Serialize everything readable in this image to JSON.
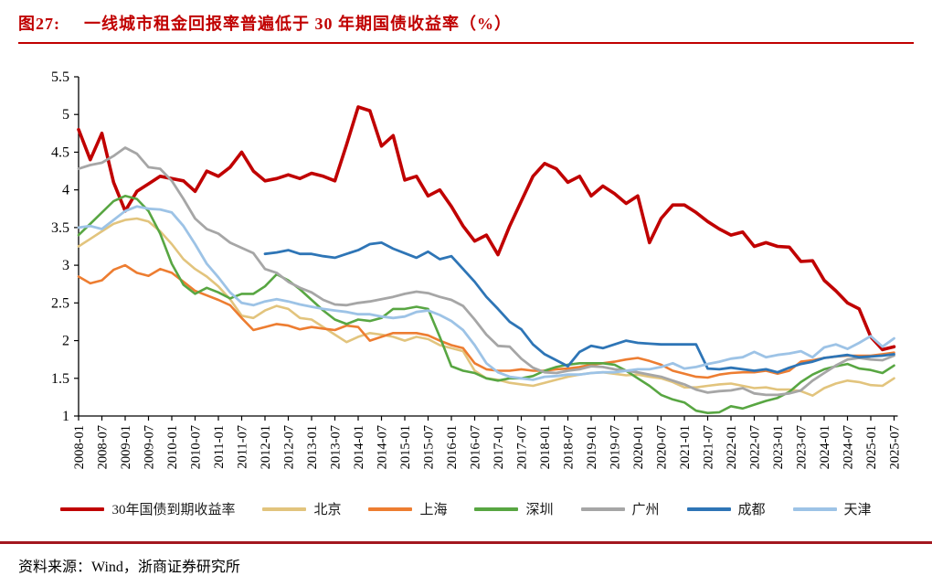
{
  "header": {
    "figure_label": "图27:",
    "title": "一线城市租金回报率普遍低于 30 年期国债收益率（%）"
  },
  "source": {
    "text": "资料来源：Wind，浙商证券研究所"
  },
  "colors": {
    "title_red": "#C00000",
    "top_rule": "#C00000",
    "bottom_rule": "#A3171F",
    "axis": "#000000",
    "text": "#1a1a1a"
  },
  "chart_data": {
    "type": "line",
    "title": "一线城市租金回报率普遍低于 30 年期国债收益率（%）",
    "xlabel": "",
    "ylabel": "",
    "ylim": [
      1,
      5.5
    ],
    "y_ticks": [
      1,
      1.5,
      2,
      2.5,
      3,
      3.5,
      4,
      4.5,
      5,
      5.5
    ],
    "grid": false,
    "legend_position": "bottom",
    "x_tick_labels": [
      "2008-01",
      "2008-07",
      "2009-01",
      "2009-07",
      "2010-01",
      "2010-07",
      "2011-01",
      "2011-07",
      "2012-01",
      "2012-07",
      "2013-01",
      "2013-07",
      "2014-01",
      "2014-07",
      "2015-01",
      "2015-07",
      "2016-01",
      "2016-07",
      "2017-01",
      "2017-07",
      "2018-01",
      "2018-07",
      "2019-01",
      "2019-07",
      "2020-01",
      "2020-07",
      "2021-01",
      "2021-07",
      "2022-01",
      "2022-07",
      "2023-01",
      "2023-07",
      "2024-01",
      "2024-07",
      "2025-01",
      "2025-07"
    ],
    "x": [
      "2008-01",
      "2008-04",
      "2008-07",
      "2008-10",
      "2009-01",
      "2009-04",
      "2009-07",
      "2009-10",
      "2010-01",
      "2010-04",
      "2010-07",
      "2010-10",
      "2011-01",
      "2011-04",
      "2011-07",
      "2011-10",
      "2012-01",
      "2012-04",
      "2012-07",
      "2012-10",
      "2013-01",
      "2013-04",
      "2013-07",
      "2013-10",
      "2014-01",
      "2014-04",
      "2014-07",
      "2014-10",
      "2015-01",
      "2015-04",
      "2015-07",
      "2015-10",
      "2016-01",
      "2016-04",
      "2016-07",
      "2016-10",
      "2017-01",
      "2017-04",
      "2017-07",
      "2017-10",
      "2018-01",
      "2018-04",
      "2018-07",
      "2018-10",
      "2019-01",
      "2019-04",
      "2019-07",
      "2019-10",
      "2020-01",
      "2020-04",
      "2020-07",
      "2020-10",
      "2021-01",
      "2021-04",
      "2021-07",
      "2021-10",
      "2022-01",
      "2022-04",
      "2022-07",
      "2022-10",
      "2023-01",
      "2023-04",
      "2023-07",
      "2023-10",
      "2024-01",
      "2024-04",
      "2024-07",
      "2024-10",
      "2025-01",
      "2025-04",
      "2025-07"
    ],
    "series": [
      {
        "name": "30年国债到期收益率",
        "color": "#C00000",
        "width": 3.6,
        "values": [
          4.8,
          4.4,
          4.75,
          4.1,
          3.72,
          3.98,
          4.08,
          4.18,
          4.15,
          4.12,
          3.98,
          4.25,
          4.18,
          4.3,
          4.5,
          4.25,
          4.12,
          4.15,
          4.2,
          4.15,
          4.22,
          4.18,
          4.12,
          4.6,
          5.1,
          5.05,
          4.58,
          4.72,
          4.13,
          4.18,
          3.92,
          4.0,
          3.78,
          3.52,
          3.32,
          3.4,
          3.14,
          3.52,
          3.85,
          4.18,
          4.35,
          4.28,
          4.1,
          4.18,
          3.92,
          4.05,
          3.95,
          3.82,
          3.92,
          3.3,
          3.62,
          3.8,
          3.8,
          3.7,
          3.58,
          3.48,
          3.4,
          3.44,
          3.25,
          3.3,
          3.25,
          3.24,
          3.05,
          3.06,
          2.8,
          2.66,
          2.5,
          2.42,
          2.05,
          1.88,
          1.92
        ]
      },
      {
        "name": "北京",
        "color": "#E2C47D",
        "width": 2.6,
        "values": [
          3.25,
          3.35,
          3.45,
          3.55,
          3.6,
          3.62,
          3.58,
          3.45,
          3.28,
          3.08,
          2.95,
          2.85,
          2.72,
          2.55,
          2.33,
          2.3,
          2.4,
          2.46,
          2.42,
          2.3,
          2.28,
          2.18,
          2.08,
          1.98,
          2.05,
          2.1,
          2.08,
          2.05,
          2.0,
          2.05,
          2.02,
          1.94,
          1.9,
          1.86,
          1.6,
          1.5,
          1.48,
          1.44,
          1.42,
          1.4,
          1.44,
          1.48,
          1.52,
          1.55,
          1.57,
          1.58,
          1.56,
          1.54,
          1.55,
          1.52,
          1.5,
          1.45,
          1.38,
          1.38,
          1.4,
          1.42,
          1.43,
          1.4,
          1.37,
          1.38,
          1.35,
          1.35,
          1.33,
          1.27,
          1.37,
          1.43,
          1.47,
          1.45,
          1.41,
          1.4,
          1.5
        ]
      },
      {
        "name": "上海",
        "color": "#ED7D31",
        "width": 2.6,
        "values": [
          2.85,
          2.76,
          2.8,
          2.94,
          3.0,
          2.9,
          2.86,
          2.95,
          2.9,
          2.78,
          2.66,
          2.6,
          2.54,
          2.47,
          2.3,
          2.14,
          2.18,
          2.22,
          2.2,
          2.15,
          2.18,
          2.16,
          2.14,
          2.2,
          2.18,
          2.0,
          2.05,
          2.1,
          2.1,
          2.1,
          2.07,
          2.0,
          1.94,
          1.9,
          1.7,
          1.62,
          1.6,
          1.6,
          1.62,
          1.6,
          1.6,
          1.62,
          1.63,
          1.65,
          1.68,
          1.7,
          1.72,
          1.75,
          1.77,
          1.73,
          1.68,
          1.6,
          1.56,
          1.52,
          1.51,
          1.55,
          1.57,
          1.58,
          1.58,
          1.6,
          1.56,
          1.6,
          1.72,
          1.74,
          1.77,
          1.79,
          1.8,
          1.8,
          1.8,
          1.82,
          1.84
        ]
      },
      {
        "name": "深圳",
        "color": "#58A642",
        "width": 2.6,
        "values": [
          3.4,
          3.55,
          3.7,
          3.85,
          3.92,
          3.88,
          3.72,
          3.42,
          3.02,
          2.74,
          2.62,
          2.7,
          2.64,
          2.56,
          2.62,
          2.62,
          2.72,
          2.88,
          2.8,
          2.68,
          2.54,
          2.4,
          2.28,
          2.22,
          2.28,
          2.26,
          2.3,
          2.42,
          2.42,
          2.45,
          2.42,
          2.05,
          1.66,
          1.6,
          1.57,
          1.5,
          1.47,
          1.5,
          1.5,
          1.53,
          1.6,
          1.65,
          1.68,
          1.7,
          1.7,
          1.7,
          1.68,
          1.6,
          1.5,
          1.4,
          1.28,
          1.22,
          1.18,
          1.07,
          1.04,
          1.05,
          1.13,
          1.1,
          1.15,
          1.2,
          1.24,
          1.32,
          1.45,
          1.55,
          1.62,
          1.66,
          1.69,
          1.63,
          1.61,
          1.57,
          1.67
        ]
      },
      {
        "name": "广州",
        "color": "#A6A6A6",
        "width": 2.8,
        "values": [
          4.28,
          4.33,
          4.36,
          4.45,
          4.56,
          4.48,
          4.3,
          4.28,
          4.12,
          3.88,
          3.62,
          3.48,
          3.42,
          3.3,
          3.23,
          3.16,
          2.95,
          2.9,
          2.78,
          2.7,
          2.64,
          2.54,
          2.48,
          2.47,
          2.5,
          2.52,
          2.55,
          2.58,
          2.62,
          2.65,
          2.63,
          2.58,
          2.54,
          2.46,
          2.28,
          2.08,
          1.93,
          1.92,
          1.76,
          1.64,
          1.58,
          1.57,
          1.6,
          1.62,
          1.66,
          1.65,
          1.62,
          1.6,
          1.58,
          1.55,
          1.52,
          1.47,
          1.42,
          1.35,
          1.31,
          1.33,
          1.34,
          1.37,
          1.3,
          1.28,
          1.28,
          1.3,
          1.34,
          1.47,
          1.57,
          1.67,
          1.75,
          1.77,
          1.75,
          1.74,
          1.8
        ]
      },
      {
        "name": "成都",
        "color": "#2E75B6",
        "width": 2.8,
        "values": [
          null,
          null,
          null,
          null,
          null,
          null,
          null,
          null,
          null,
          null,
          null,
          null,
          null,
          null,
          null,
          null,
          3.15,
          3.17,
          3.2,
          3.15,
          3.15,
          3.12,
          3.1,
          3.15,
          3.2,
          3.28,
          3.3,
          3.22,
          3.16,
          3.1,
          3.18,
          3.08,
          3.12,
          2.95,
          2.78,
          2.58,
          2.42,
          2.25,
          2.15,
          1.95,
          1.82,
          1.74,
          1.66,
          1.85,
          1.93,
          1.9,
          1.95,
          2.0,
          1.97,
          1.96,
          1.95,
          1.95,
          1.95,
          1.95,
          1.63,
          1.62,
          1.64,
          1.62,
          1.6,
          1.62,
          1.58,
          1.64,
          1.69,
          1.72,
          1.77,
          1.79,
          1.81,
          1.78,
          1.79,
          1.8,
          1.82
        ]
      },
      {
        "name": "天津",
        "color": "#9DC3E6",
        "width": 2.8,
        "values": [
          3.5,
          3.52,
          3.48,
          3.6,
          3.72,
          3.78,
          3.75,
          3.74,
          3.7,
          3.52,
          3.28,
          3.02,
          2.84,
          2.64,
          2.5,
          2.47,
          2.52,
          2.55,
          2.52,
          2.48,
          2.45,
          2.42,
          2.4,
          2.38,
          2.35,
          2.35,
          2.32,
          2.3,
          2.32,
          2.38,
          2.4,
          2.34,
          2.26,
          2.14,
          1.94,
          1.7,
          1.58,
          1.52,
          1.5,
          1.48,
          1.52,
          1.53,
          1.55,
          1.55,
          1.57,
          1.58,
          1.58,
          1.6,
          1.62,
          1.62,
          1.65,
          1.7,
          1.63,
          1.65,
          1.69,
          1.72,
          1.76,
          1.78,
          1.85,
          1.78,
          1.81,
          1.83,
          1.86,
          1.78,
          1.91,
          1.95,
          1.89,
          1.97,
          2.06,
          1.92,
          2.03
        ]
      }
    ]
  }
}
